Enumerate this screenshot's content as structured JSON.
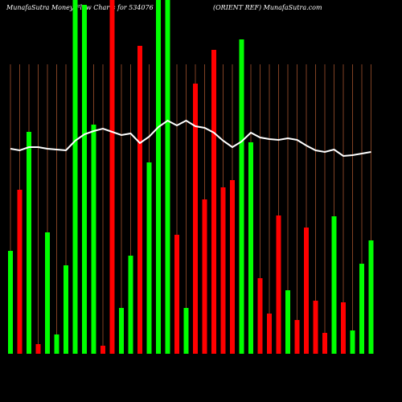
{
  "chart_data": {
    "type": "bar",
    "title": "MunafaSutra  Money Flow  Charts for 534076",
    "subtitle": "(ORIENT REF) MunafaSutra.com",
    "ylim": [
      0,
      440
    ],
    "values": [
      128,
      204,
      276,
      12,
      151,
      24,
      110,
      440,
      434,
      285,
      10,
      440,
      57,
      122,
      383,
      238,
      440,
      440,
      148,
      57,
      336,
      192,
      378,
      207,
      216,
      391,
      263,
      94,
      50,
      172,
      79,
      42,
      157,
      66,
      26,
      171,
      64,
      29,
      112,
      141
    ],
    "colors": [
      "#00ff00",
      "#ff0000",
      "#00ff00",
      "#ff0000",
      "#00ff00",
      "#00ff00",
      "#00ff00",
      "#00ff00",
      "#00ff00",
      "#00ff00",
      "#ff0000",
      "#ff0000",
      "#00ff00",
      "#00ff00",
      "#ff0000",
      "#00ff00",
      "#00ff00",
      "#00ff00",
      "#ff0000",
      "#00ff00",
      "#ff0000",
      "#ff0000",
      "#ff0000",
      "#ff0000",
      "#ff0000",
      "#00ff00",
      "#00ff00",
      "#ff0000",
      "#ff0000",
      "#ff0000",
      "#00ff00",
      "#ff0000",
      "#ff0000",
      "#ff0000",
      "#ff0000",
      "#00ff00",
      "#ff0000",
      "#00ff00",
      "#00ff00",
      "#00ff00"
    ],
    "line": {
      "color": "#ffffff",
      "values": [
        255,
        253,
        257,
        257,
        255,
        254,
        253,
        265,
        273,
        277,
        280,
        276,
        272,
        274,
        262,
        270,
        282,
        290,
        284,
        290,
        283,
        281,
        275,
        265,
        257,
        264,
        275,
        269,
        267,
        266,
        268,
        266,
        259,
        253,
        251,
        254,
        246,
        247,
        249,
        251
      ]
    }
  }
}
